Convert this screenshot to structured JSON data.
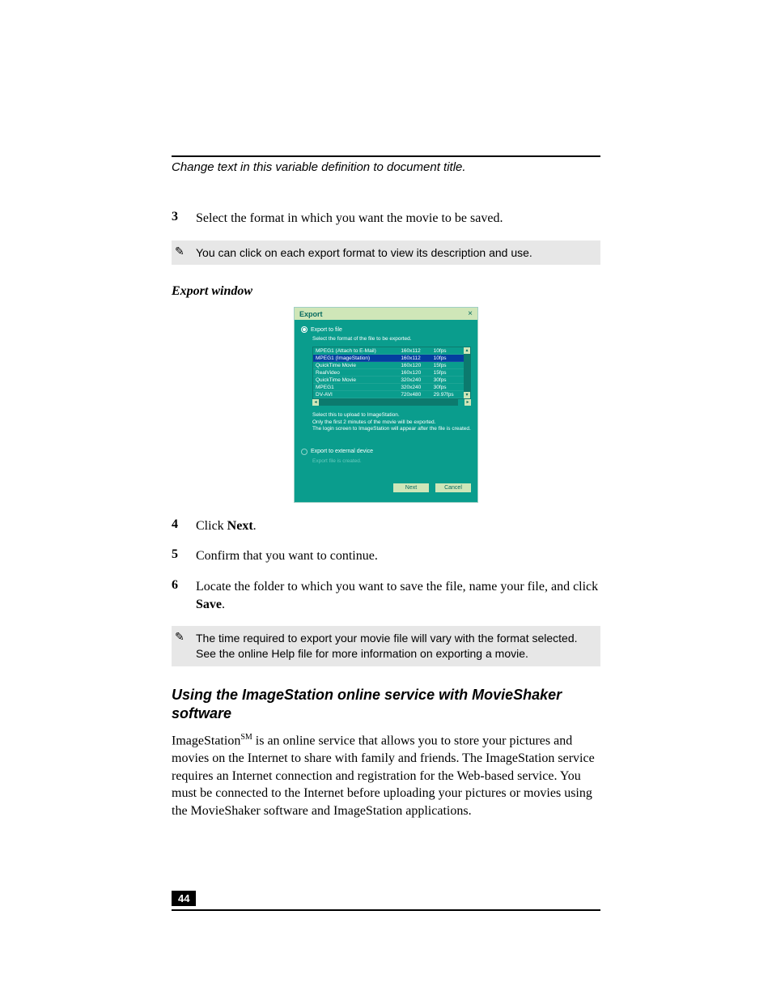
{
  "colors": {
    "page_bg": "#ffffff",
    "text": "#000000",
    "note_bg": "#e7e7e7",
    "dialog_bg": "#0a9d8d",
    "dialog_title_bg": "#cfe6b8",
    "dialog_title_fg": "#066a5f",
    "dialog_selected_bg": "#043e9f",
    "dialog_disabled_fg": "#68c9be",
    "dialog_btn_bg": "#cfe6b8",
    "dialog_btn_fg": "#066a5f",
    "footer_box_bg": "#000000",
    "footer_box_fg": "#ffffff"
  },
  "running_head": "Change text in this variable definition to document title.",
  "steps_a": [
    {
      "num": "3",
      "text": "Select the format in which you want the movie to be saved."
    }
  ],
  "note1": {
    "icon": "✎",
    "text": "You can click on each export format to view its description and use."
  },
  "figure_caption": "Export window",
  "export_dialog": {
    "title": "Export",
    "close_glyph": "×",
    "radio1_label": "Export to file",
    "instruction": "Select the format of the file to be exported.",
    "columns": [
      "MPEG1 (Attach to E-Mail)",
      "160x112",
      "10fps"
    ],
    "rows": [
      {
        "name": "MPEG1 (Attach to E-Mail)",
        "res": "160x112",
        "fps": "10fps",
        "selected": false
      },
      {
        "name": "MPEG1 (ImageStation)",
        "res": "160x112",
        "fps": "10fps",
        "selected": true
      },
      {
        "name": "QuickTime Movie",
        "res": "160x120",
        "fps": "15fps",
        "selected": false
      },
      {
        "name": "RealVideo",
        "res": "160x120",
        "fps": "15fps",
        "selected": false
      },
      {
        "name": "QuickTime Movie",
        "res": "320x240",
        "fps": "30fps",
        "selected": false
      },
      {
        "name": "MPEG1",
        "res": "320x240",
        "fps": "30fps",
        "selected": false
      },
      {
        "name": "DV-AVI",
        "res": "720x480",
        "fps": "29.97fps",
        "selected": false
      }
    ],
    "desc_lines": [
      "Select this to upload to ImageStation.",
      "Only the first 2 minutes of the movie will be exported.",
      "The login screen to ImageStation will appear after the file is created."
    ],
    "radio2_label": "Export to external device",
    "disabled_sub": "Export file is created.",
    "buttons": {
      "next": "Next",
      "cancel": "Cancel"
    }
  },
  "steps_b": [
    {
      "num": "4",
      "parts": [
        "Click ",
        "Next",
        "."
      ]
    },
    {
      "num": "5",
      "parts": [
        "Confirm that you want to continue."
      ]
    },
    {
      "num": "6",
      "parts": [
        "Locate the folder to which you want to save the file, name your file, and click ",
        "Save",
        "."
      ]
    }
  ],
  "note2": {
    "icon": "✎",
    "text": "The time required to export your movie file will vary with the format selected. See the online Help file for more information on exporting a movie."
  },
  "section_heading": "Using the ImageStation online service with MovieShaker software",
  "paragraph": {
    "lead": "ImageStation",
    "sm": "SM",
    "rest": " is an online service that allows you to store your pictures and movies on the Internet to share with family and friends. The ImageStation service requires an Internet connection and registration for the Web-based service. You must be connected to the Internet before uploading your pictures or movies using the MovieShaker software and ImageStation applications."
  },
  "page_number": "44"
}
